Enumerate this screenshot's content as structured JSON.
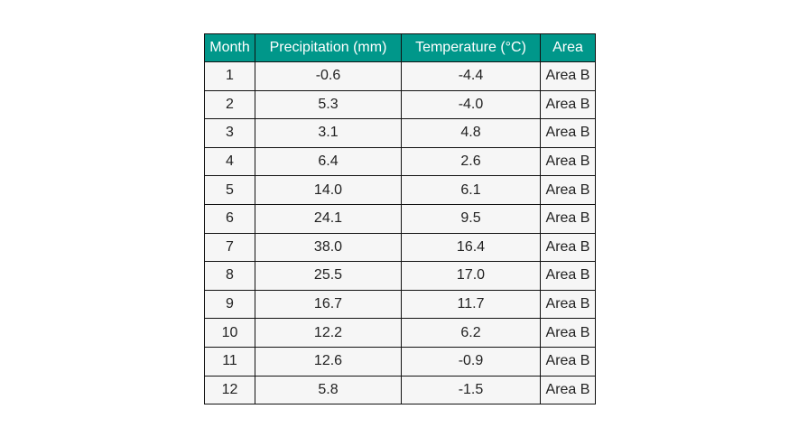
{
  "chart_data": {
    "type": "table",
    "columns": [
      "Month",
      "Precipitation (mm)",
      "Temperature (°C)",
      "Area"
    ],
    "rows": [
      [
        "1",
        "-0.6",
        "-4.4",
        "Area B"
      ],
      [
        "2",
        "5.3",
        "-4.0",
        "Area B"
      ],
      [
        "3",
        "3.1",
        "4.8",
        "Area B"
      ],
      [
        "4",
        "6.4",
        "2.6",
        "Area B"
      ],
      [
        "5",
        "14.0",
        "6.1",
        "Area B"
      ],
      [
        "6",
        "24.1",
        "9.5",
        "Area B"
      ],
      [
        "7",
        "38.0",
        "16.4",
        "Area B"
      ],
      [
        "8",
        "25.5",
        "17.0",
        "Area B"
      ],
      [
        "9",
        "16.7",
        "11.7",
        "Area B"
      ],
      [
        "10",
        "12.2",
        "6.2",
        "Area B"
      ],
      [
        "11",
        "12.6",
        "-0.9",
        "Area B"
      ],
      [
        "12",
        "5.8",
        "-1.5",
        "Area B"
      ]
    ]
  },
  "colors": {
    "header_background": "#00978a",
    "header_text": "#ffffff",
    "cell_background": "#f6f6f6",
    "border": "#111111",
    "cell_text": "#222222"
  }
}
